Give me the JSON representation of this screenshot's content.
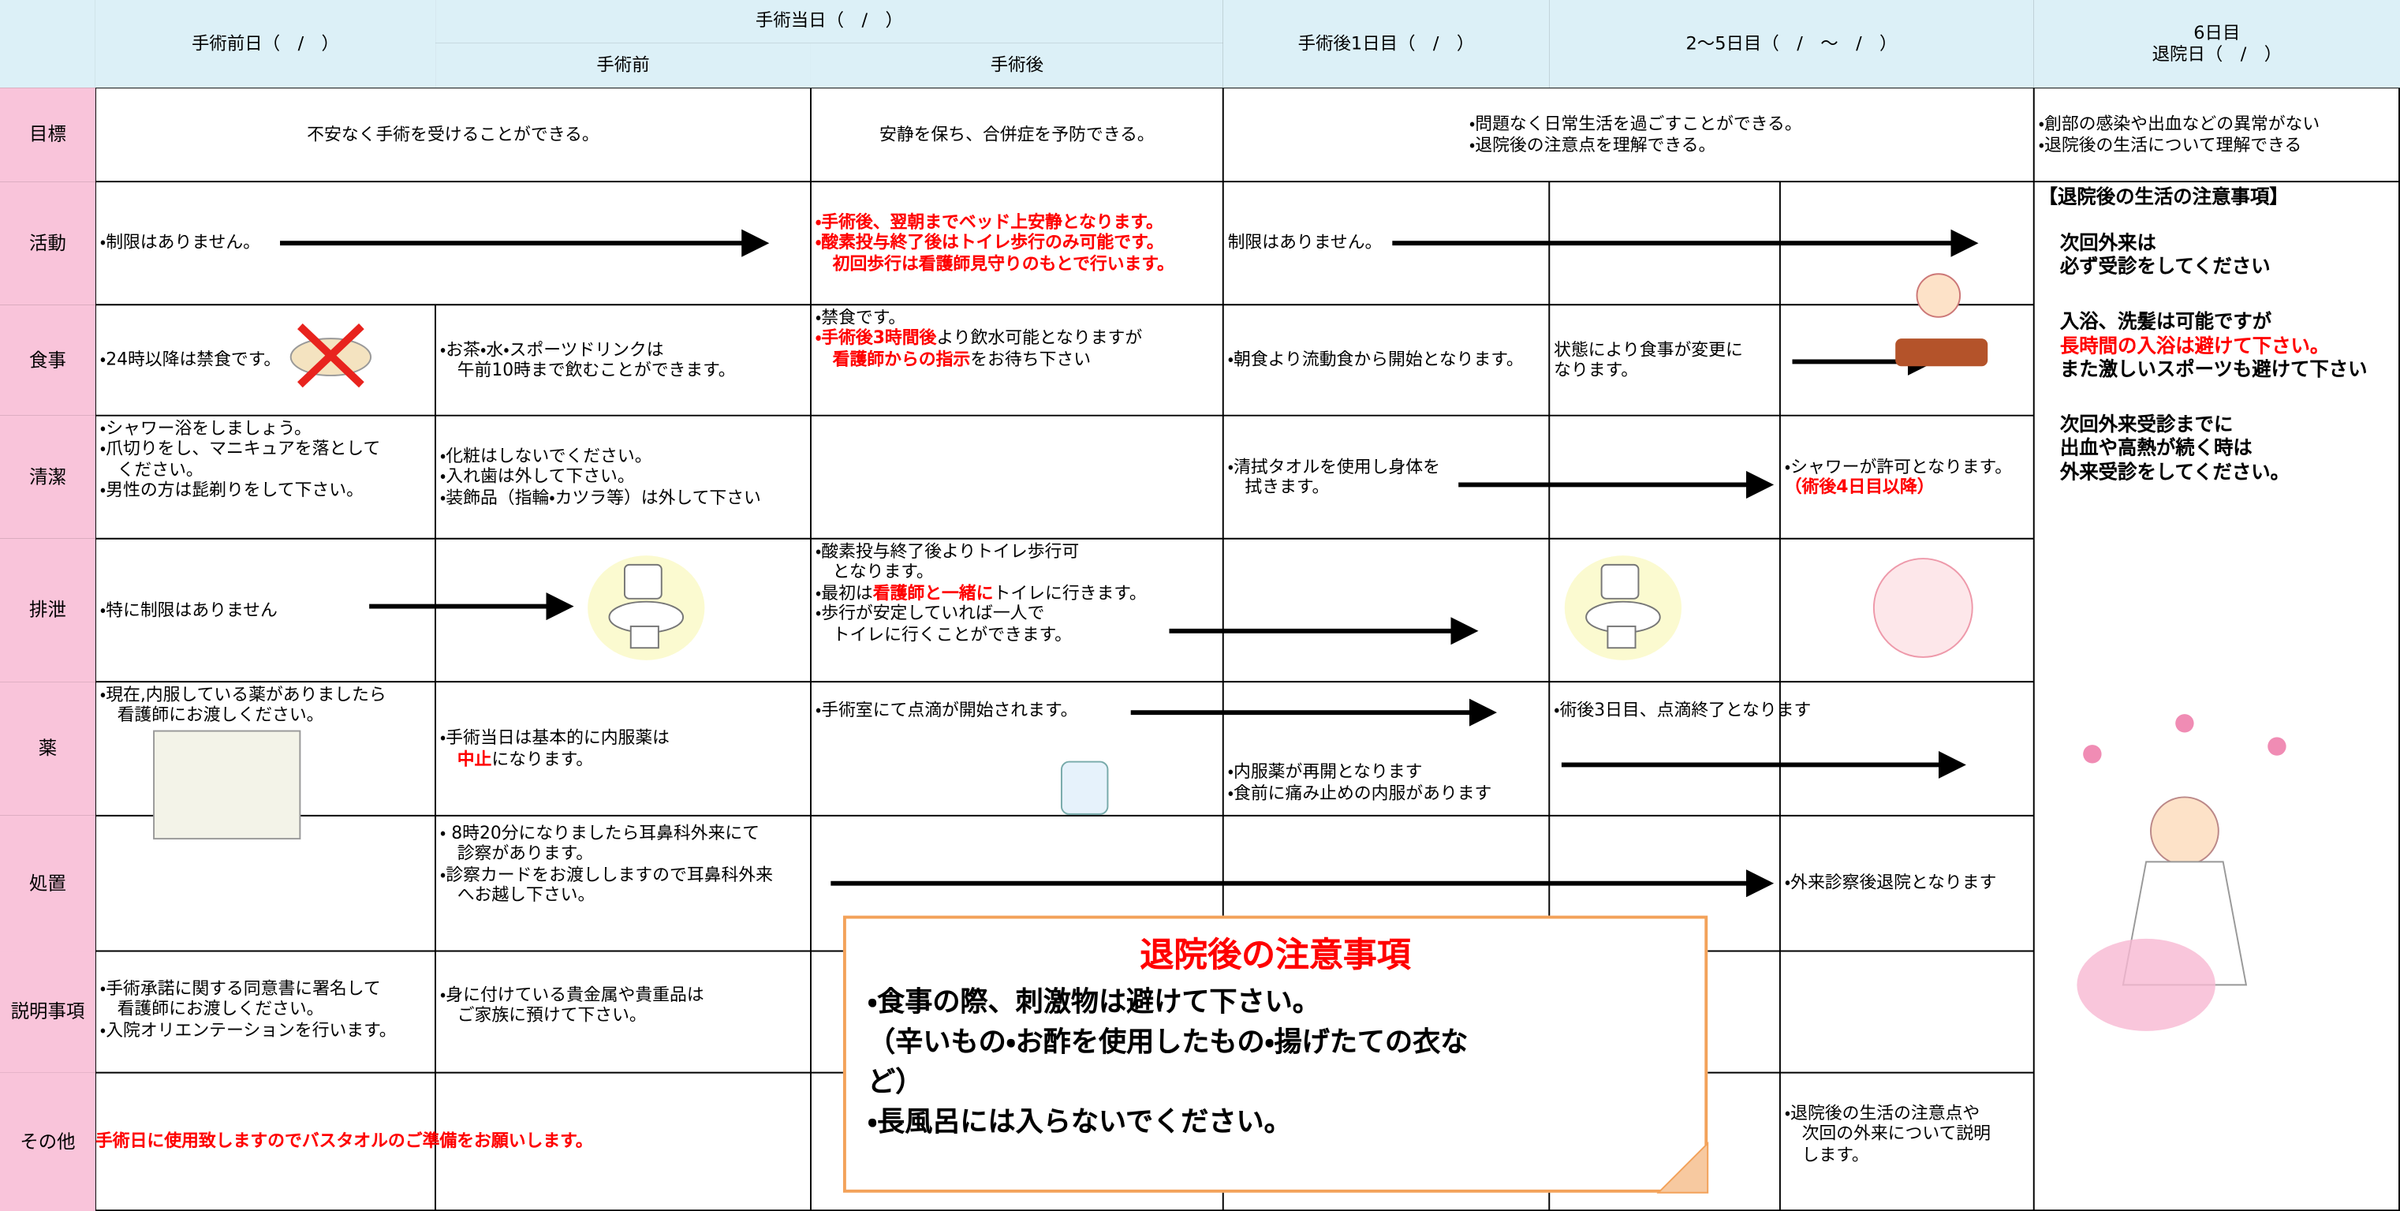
{
  "header": [
    {
      "lines": [
        "手術前日（　/　）"
      ]
    },
    {
      "lines": [
        "手術当日（　/　）"
      ]
    },
    {
      "lines": [
        "手術前"
      ]
    },
    {
      "lines": [
        "手術後"
      ]
    },
    {
      "lines": [
        "手術後1日目（　/　）"
      ]
    },
    {
      "lines": [
        "2〜5日目（　/　〜　/　）"
      ]
    },
    {
      "lines": [
        "6日目",
        "退院日（　/　）"
      ]
    }
  ],
  "rows": [
    {
      "label": "目標",
      "cells": [
        {
          "lines": [
            [
              "不安なく手術を受けることができる。"
            ]
          ]
        },
        {
          "lines": [
            [
              "安静を保ち、合併症を予防できる。"
            ]
          ]
        },
        {
          "lines": [
            [
              "・問題なく日常生活を過ごすことができる。"
            ],
            [
              "・退院後の注意点を理解できる。"
            ]
          ]
        },
        {
          "lines": [
            [
              "・創部の感染や出血などの異常がない"
            ],
            [
              "・退院後の生活について理解できる"
            ]
          ]
        }
      ]
    },
    {
      "label": "活動",
      "cells": [
        {
          "lines": [
            [
              "・制限はありません。"
            ]
          ]
        },
        {
          "lines": [
            [
              {
                "text": "・手術後、翌朝までベッド上安静となります。",
                "color": "#ff0000"
              }
            ],
            [
              {
                "text": "・酸素投与終了後はトイレ歩行のみ可能です。",
                "color": "#ff0000"
              }
            ],
            [
              {
                "text": "　初回歩行は看護師見守りのもとで行います。",
                "color": "#ff0000"
              }
            ]
          ]
        },
        {
          "lines": [
            [
              "制限はありません。"
            ]
          ]
        }
      ]
    },
    {
      "label": "食事",
      "cells": [
        {
          "lines": [
            [
              "・24時以降は禁食です。"
            ]
          ]
        },
        {
          "lines": [
            [
              "・お茶・水・スポーツドリンクは"
            ],
            [
              "　午前10時まで飲むことができます。"
            ]
          ]
        },
        {
          "lines": [
            [
              "・禁食です。"
            ],
            [
              {
                "text": "・手術後3時間後",
                "color": "#ff0000"
              },
              "より飲水可能となりますが"
            ],
            [
              {
                "text": "　看護師からの指示",
                "color": "#ff0000"
              },
              "をお待ち下さい"
            ]
          ]
        },
        {
          "lines": [
            [
              "・朝食より流動食から開始となります。"
            ]
          ]
        },
        {
          "lines": [
            [
              "状態により食事が変更に"
            ],
            [
              "なります。"
            ]
          ]
        }
      ]
    },
    {
      "label": "清潔",
      "cells": [
        {
          "lines": [
            [
              "・シャワー浴をしましょう。"
            ],
            [
              "・爪切りをし、マニキュアを落として"
            ],
            [
              "　ください。"
            ],
            [
              "・男性の方は髭剃りをして下さい。"
            ]
          ]
        },
        {
          "lines": [
            [
              "・化粧はしないでください。"
            ],
            [
              "・入れ歯は外して下さい。"
            ],
            [
              "・装飾品（指輪・カツラ等）は外して下さい"
            ]
          ]
        },
        {
          "lines": [
            [
              "・清拭タオルを使用し身体を"
            ],
            [
              "　拭きます。"
            ]
          ]
        },
        {
          "lines": [
            [
              "・シャワーが許可となります。"
            ],
            [
              {
                "text": "（術後4日目以降）",
                "color": "#ff0000"
              }
            ]
          ]
        }
      ]
    },
    {
      "label": "排泄",
      "cells": [
        {
          "lines": [
            [
              "・特に制限はありません"
            ]
          ]
        },
        {
          "lines": [
            [
              "・酸素投与終了後よりトイレ歩行可"
            ],
            [
              "　となります。"
            ],
            [
              "・最初は",
              {
                "text": "看護師と一緒に",
                "color": "#ff0000"
              },
              "トイレに行きます。"
            ],
            [
              "・歩行が安定していれば一人で"
            ],
            [
              "　トイレに行くことができます。"
            ]
          ]
        }
      ]
    },
    {
      "label": "薬",
      "cells": [
        {
          "lines": [
            [
              "・現在,内服している薬がありましたら"
            ],
            [
              "　看護師にお渡しください。"
            ]
          ]
        },
        {
          "lines": [
            [
              "・手術当日は基本的に内服薬は"
            ],
            [
              {
                "text": "　中止",
                "color": "#ff0000"
              },
              "になります。"
            ]
          ]
        },
        {
          "lines": [
            [
              "・手術室にて点滴が開始されます。"
            ]
          ]
        },
        {
          "lines": [
            [
              "・内服薬が再開となります"
            ],
            [
              "・食前に痛み止めの内服があります"
            ]
          ]
        },
        {
          "lines": [
            [
              "・術後3日目、点滴終了となります"
            ]
          ]
        }
      ]
    },
    {
      "label": "処置",
      "cells": [
        {
          "lines": [
            [
              "・ 8時20分になりましたら耳鼻科外来にて"
            ],
            [
              "　診察があります。"
            ],
            [
              "・診察カードをお渡ししますので耳鼻科外来"
            ],
            [
              "　へお越し下さい。"
            ]
          ]
        },
        {
          "lines": [
            [
              "・外来診察後退院となります"
            ]
          ]
        }
      ]
    },
    {
      "label": "説明事項",
      "cells": [
        {
          "lines": [
            [
              "・手術承諾に関する同意書に署名して"
            ],
            [
              "　看護師にお渡しください。"
            ],
            [
              "・入院オリエンテーションを行います。"
            ]
          ]
        },
        {
          "lines": [
            [
              "・身に付けている貴金属や貴重品は"
            ],
            [
              "　ご家族に預けて下さい。"
            ]
          ]
        }
      ]
    },
    {
      "label": "その他",
      "cells": [
        {
          "lines": [
            [
              {
                "text": "手術日に使用致しますのでバスタオルのご準備をお願いします。",
                "color": "#ff0000"
              }
            ]
          ]
        },
        {
          "lines": [
            [
              "・退院後の生活の注意点や"
            ],
            [
              "　次回の外来について説明"
            ],
            [
              "　します。"
            ]
          ]
        }
      ]
    }
  ],
  "side_panel": {
    "groups": [
      [
        "【退院後の生活の注意事項】"
      ],
      [
        "次回外来は",
        "必ず受診をしてください"
      ],
      [
        "入浴、洗髪は可能ですが",
        {
          "text": "長時間の入浴は避けて下さい。",
          "color": "#ff0000"
        },
        "また激しいスポーツも避けて下さい"
      ],
      [
        "次回外来受診までに",
        "出血や高熱が続く時は",
        "外来受診をしてください。"
      ]
    ]
  },
  "notice": {
    "title": "退院後の注意事項",
    "lines": [
      "・食事の際、刺激物は避けて下さい。",
      "（辛いもの・お酢を使用したもの・揚げたての衣な",
      "ど）",
      "・長風呂には入らないでください。"
    ]
  }
}
